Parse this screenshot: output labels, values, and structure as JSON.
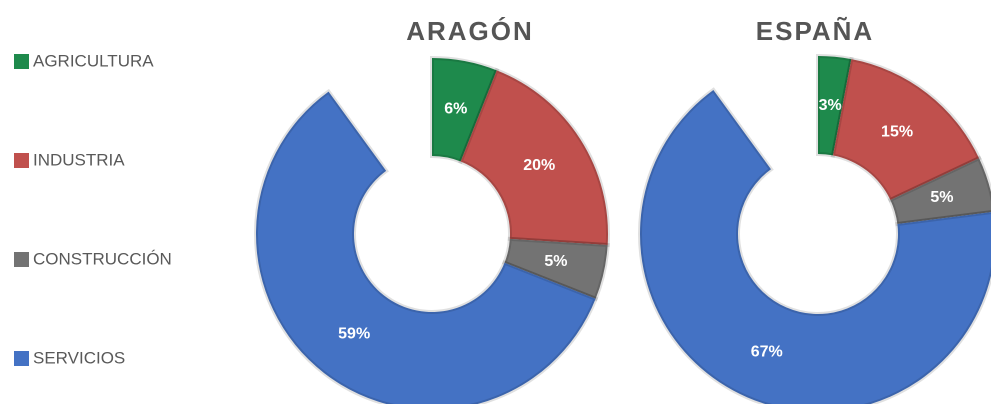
{
  "chart_data": [
    {
      "type": "pie",
      "title": "ARAGÓN",
      "categories": [
        "AGRICULTURA",
        "INDUSTRIA",
        "CONSTRUCCIÓN",
        "SERVICIOS"
      ],
      "values": [
        6,
        20,
        5,
        59
      ],
      "value_labels": [
        "6%",
        "20%",
        "5%",
        "59%"
      ],
      "colors": [
        "#1e8a4c",
        "#c0504d",
        "#737373",
        "#4472c4"
      ],
      "legend": "left"
    },
    {
      "type": "pie",
      "title": "ESPAÑA",
      "categories": [
        "AGRICULTURA",
        "INDUSTRIA",
        "CONSTRUCCIÓN",
        "SERVICIOS"
      ],
      "values": [
        3,
        15,
        5,
        67
      ],
      "value_labels": [
        "3%",
        "15%",
        "5%",
        "67%"
      ],
      "colors": [
        "#1e8a4c",
        "#c0504d",
        "#737373",
        "#4472c4"
      ]
    }
  ]
}
